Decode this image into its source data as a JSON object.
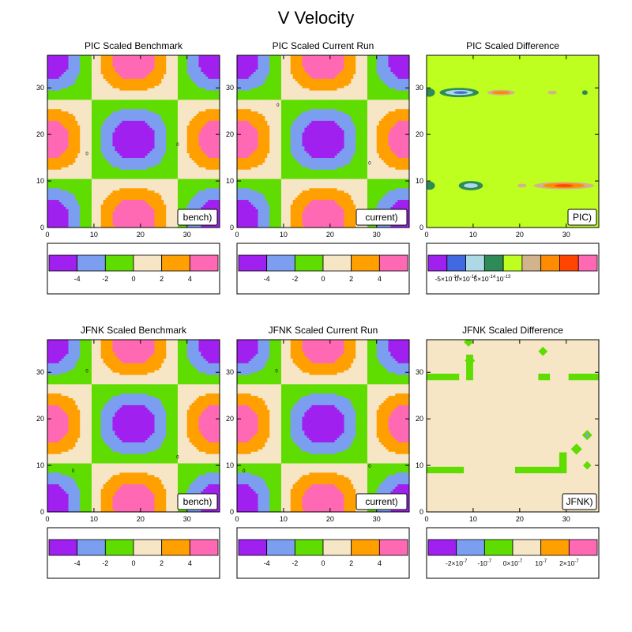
{
  "title": "V Velocity",
  "palettes": {
    "velocity": [
      "#a020f0",
      "#7b9ef0",
      "#5fdc00",
      "#f6e6c5",
      "#ffa000",
      "#ff69b4"
    ],
    "pic_diff": [
      "#a020f0",
      "#4169e1",
      "#add8e6",
      "#2e8b57",
      "#bfff1f",
      "#d2b48c",
      "#ff8c00",
      "#ff4500",
      "#ff69b4"
    ],
    "jfnk_diff": [
      "#a020f0",
      "#7b9ef0",
      "#5fdc00",
      "#f6e6c5",
      "#ffa000",
      "#ff69b4"
    ]
  },
  "chart_data": [
    {
      "type": "heatmap",
      "kind": "velocity",
      "title": "PIC Scaled Benchmark",
      "xlim": [
        0,
        37
      ],
      "ylim": [
        0,
        37
      ],
      "xticks": [
        "0",
        "10",
        "20",
        "30"
      ],
      "yticks": [
        "0",
        "10",
        "20",
        "30"
      ],
      "label": "bench)",
      "contour_levels": [
        -4,
        -2,
        0,
        2,
        4
      ],
      "colorbar_labels": [
        "-4",
        "-2",
        "0",
        "2",
        "4"
      ],
      "contour_markers": [
        {
          "x": 8.5,
          "y": 16,
          "text": "0"
        },
        {
          "x": 28,
          "y": 18,
          "text": "0"
        }
      ]
    },
    {
      "type": "heatmap",
      "kind": "velocity",
      "title": "PIC Scaled Current Run",
      "xlim": [
        0,
        37
      ],
      "ylim": [
        0,
        37
      ],
      "xticks": [
        "0",
        "10",
        "20",
        "30"
      ],
      "yticks": [
        "0",
        "10",
        "20",
        "30"
      ],
      "label": "current)",
      "contour_levels": [
        -4,
        -2,
        0,
        2,
        4
      ],
      "colorbar_labels": [
        "-4",
        "-2",
        "0",
        "2",
        "4"
      ],
      "contour_markers": [
        {
          "x": 8.8,
          "y": 26.5,
          "text": "0"
        },
        {
          "x": 28.5,
          "y": 14,
          "text": "0"
        }
      ]
    },
    {
      "type": "heatmap",
      "kind": "pic_diff",
      "title": "PIC Scaled Difference",
      "xlim": [
        0,
        37
      ],
      "ylim": [
        0,
        37
      ],
      "xticks": [
        "0",
        "10",
        "20",
        "30"
      ],
      "yticks": [
        "0",
        "10",
        "20",
        "30"
      ],
      "label": "PIC)",
      "colorbar_labels": [
        {
          "m": "-5×10",
          "e": "-14"
        },
        {
          "m": "0×10",
          "e": "-14"
        },
        {
          "m": "5×10",
          "e": "-14"
        },
        {
          "m": "10",
          "e": "-13"
        }
      ]
    },
    {
      "type": "heatmap",
      "kind": "velocity",
      "title": "JFNK Scaled Benchmark",
      "xlim": [
        0,
        37
      ],
      "ylim": [
        0,
        37
      ],
      "xticks": [
        "0",
        "10",
        "20",
        "30"
      ],
      "yticks": [
        "0",
        "10",
        "20",
        "30"
      ],
      "label": "bench)",
      "contour_levels": [
        -4,
        -2,
        0,
        2,
        4
      ],
      "colorbar_labels": [
        "-4",
        "-2",
        "0",
        "2",
        "4"
      ],
      "contour_markers": [
        {
          "x": 8.5,
          "y": 30.5,
          "text": "0"
        },
        {
          "x": 5.5,
          "y": 9,
          "text": "0"
        },
        {
          "x": 28,
          "y": 12,
          "text": "0"
        }
      ]
    },
    {
      "type": "heatmap",
      "kind": "velocity",
      "title": "JFNK Scaled Current Run",
      "xlim": [
        0,
        37
      ],
      "ylim": [
        0,
        37
      ],
      "xticks": [
        "0",
        "10",
        "20",
        "30"
      ],
      "yticks": [
        "0",
        "10",
        "20",
        "30"
      ],
      "label": "current)",
      "contour_levels": [
        -4,
        -2,
        0,
        2,
        4
      ],
      "colorbar_labels": [
        "-4",
        "-2",
        "0",
        "2",
        "4"
      ],
      "contour_markers": [
        {
          "x": 8.5,
          "y": 30.5,
          "text": "0"
        },
        {
          "x": 1.5,
          "y": 9,
          "text": "0"
        },
        {
          "x": 28.5,
          "y": 10,
          "text": "0"
        }
      ]
    },
    {
      "type": "heatmap",
      "kind": "jfnk_diff",
      "title": "JFNK Scaled Difference",
      "xlim": [
        0,
        37
      ],
      "ylim": [
        0,
        37
      ],
      "xticks": [
        "0",
        "10",
        "20",
        "30"
      ],
      "yticks": [
        "0",
        "10",
        "20",
        "30"
      ],
      "label": "JFNK)",
      "colorbar_labels": [
        {
          "m": "-2×10",
          "e": "-7"
        },
        {
          "m": "-10",
          "e": "-7"
        },
        {
          "m": "0×10",
          "e": "-7"
        },
        {
          "m": "10",
          "e": "-7"
        },
        {
          "m": "2×10",
          "e": "-7"
        }
      ]
    }
  ]
}
